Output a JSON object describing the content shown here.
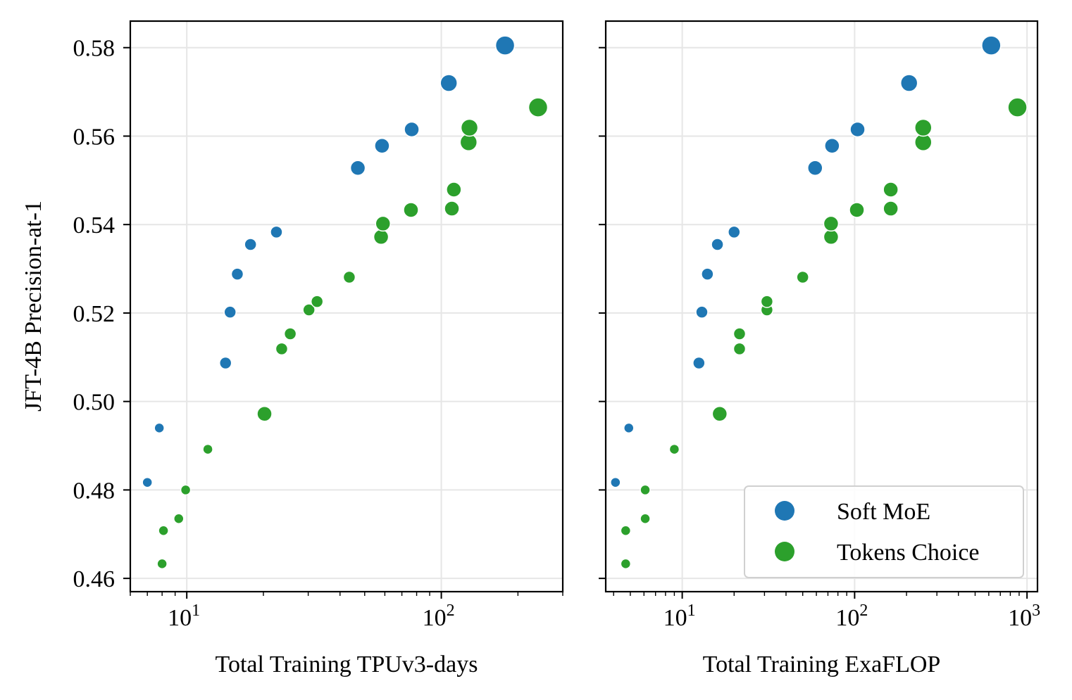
{
  "chart_data": [
    {
      "type": "scatter",
      "xlabel": "Total Training TPUv3-days",
      "ylabel": "JFT-4B Precision-at-1",
      "xscale": "log",
      "xlim": [
        6.0,
        300
      ],
      "ylim": [
        0.457,
        0.586
      ],
      "x_ticks": [
        10,
        100
      ],
      "x_tick_labels": [
        {
          "base": "10",
          "exp": "1"
        },
        {
          "base": "10",
          "exp": "2"
        }
      ],
      "y_ticks": [
        0.46,
        0.48,
        0.5,
        0.52,
        0.54,
        0.56,
        0.58
      ],
      "y_tick_labels": [
        "0.46",
        "0.48",
        "0.50",
        "0.52",
        "0.54",
        "0.56",
        "0.58"
      ],
      "grid": true,
      "series": [
        {
          "name": "Soft MoE",
          "color": "#1f77b4",
          "points": [
            {
              "x": 7.0,
              "y": 0.4817,
              "size": 1
            },
            {
              "x": 7.8,
              "y": 0.494,
              "size": 1
            },
            {
              "x": 14.2,
              "y": 0.5087,
              "size": 2
            },
            {
              "x": 14.8,
              "y": 0.5202,
              "size": 2
            },
            {
              "x": 15.8,
              "y": 0.5288,
              "size": 2
            },
            {
              "x": 17.8,
              "y": 0.5355,
              "size": 2
            },
            {
              "x": 22.5,
              "y": 0.5383,
              "size": 2
            },
            {
              "x": 47.0,
              "y": 0.5528,
              "size": 3
            },
            {
              "x": 58.5,
              "y": 0.5578,
              "size": 3
            },
            {
              "x": 76.5,
              "y": 0.5615,
              "size": 3
            },
            {
              "x": 107.0,
              "y": 0.572,
              "size": 4
            },
            {
              "x": 178.0,
              "y": 0.5805,
              "size": 5
            }
          ]
        },
        {
          "name": "Tokens Choice",
          "color": "#2ca02c",
          "points": [
            {
              "x": 8.0,
              "y": 0.4633,
              "size": 1
            },
            {
              "x": 8.1,
              "y": 0.4708,
              "size": 1
            },
            {
              "x": 9.3,
              "y": 0.4735,
              "size": 1
            },
            {
              "x": 9.9,
              "y": 0.48,
              "size": 1
            },
            {
              "x": 12.1,
              "y": 0.4892,
              "size": 1
            },
            {
              "x": 20.2,
              "y": 0.4972,
              "size": 3
            },
            {
              "x": 23.6,
              "y": 0.5119,
              "size": 2
            },
            {
              "x": 25.5,
              "y": 0.5153,
              "size": 2
            },
            {
              "x": 30.2,
              "y": 0.5207,
              "size": 2
            },
            {
              "x": 32.5,
              "y": 0.5226,
              "size": 2
            },
            {
              "x": 43.5,
              "y": 0.5281,
              "size": 2
            },
            {
              "x": 58.0,
              "y": 0.5372,
              "size": 3
            },
            {
              "x": 59.0,
              "y": 0.5402,
              "size": 3
            },
            {
              "x": 76.0,
              "y": 0.5433,
              "size": 3
            },
            {
              "x": 110.0,
              "y": 0.5436,
              "size": 3
            },
            {
              "x": 112.0,
              "y": 0.5479,
              "size": 3
            },
            {
              "x": 128.0,
              "y": 0.5586,
              "size": 4
            },
            {
              "x": 129.0,
              "y": 0.5619,
              "size": 4
            },
            {
              "x": 240.0,
              "y": 0.5665,
              "size": 5
            }
          ]
        }
      ]
    },
    {
      "type": "scatter",
      "xlabel": "Total Training ExaFLOP",
      "ylabel": "",
      "xscale": "log",
      "xlim": [
        3.6,
        1150
      ],
      "ylim": [
        0.457,
        0.586
      ],
      "x_ticks": [
        10,
        100,
        1000
      ],
      "x_tick_labels": [
        {
          "base": "10",
          "exp": "1"
        },
        {
          "base": "10",
          "exp": "2"
        },
        {
          "base": "10",
          "exp": "3"
        }
      ],
      "y_ticks": [
        0.46,
        0.48,
        0.5,
        0.52,
        0.54,
        0.56,
        0.58
      ],
      "grid": true,
      "legend": {
        "position": "lower-right",
        "entries": [
          {
            "label": "Soft MoE",
            "color": "#1f77b4"
          },
          {
            "label": "Tokens Choice",
            "color": "#2ca02c"
          }
        ]
      },
      "series": [
        {
          "name": "Soft MoE",
          "color": "#1f77b4",
          "points": [
            {
              "x": 4.1,
              "y": 0.4817,
              "size": 1
            },
            {
              "x": 4.9,
              "y": 0.494,
              "size": 1
            },
            {
              "x": 12.5,
              "y": 0.5087,
              "size": 2
            },
            {
              "x": 13.0,
              "y": 0.5202,
              "size": 2
            },
            {
              "x": 14.0,
              "y": 0.5288,
              "size": 2
            },
            {
              "x": 16.0,
              "y": 0.5355,
              "size": 2
            },
            {
              "x": 20.0,
              "y": 0.5383,
              "size": 2
            },
            {
              "x": 59.0,
              "y": 0.5528,
              "size": 3
            },
            {
              "x": 74.0,
              "y": 0.5578,
              "size": 3
            },
            {
              "x": 104.0,
              "y": 0.5615,
              "size": 3
            },
            {
              "x": 207.0,
              "y": 0.572,
              "size": 4
            },
            {
              "x": 620.0,
              "y": 0.5805,
              "size": 5
            }
          ]
        },
        {
          "name": "Tokens Choice",
          "color": "#2ca02c",
          "points": [
            {
              "x": 4.7,
              "y": 0.4633,
              "size": 1
            },
            {
              "x": 4.7,
              "y": 0.4708,
              "size": 1
            },
            {
              "x": 6.1,
              "y": 0.4735,
              "size": 1
            },
            {
              "x": 6.1,
              "y": 0.48,
              "size": 1
            },
            {
              "x": 9.0,
              "y": 0.4892,
              "size": 1
            },
            {
              "x": 16.5,
              "y": 0.4972,
              "size": 3
            },
            {
              "x": 21.5,
              "y": 0.5119,
              "size": 2
            },
            {
              "x": 21.5,
              "y": 0.5153,
              "size": 2
            },
            {
              "x": 31.0,
              "y": 0.5207,
              "size": 2
            },
            {
              "x": 31.0,
              "y": 0.5226,
              "size": 2
            },
            {
              "x": 50.0,
              "y": 0.5281,
              "size": 2
            },
            {
              "x": 73.0,
              "y": 0.5372,
              "size": 3
            },
            {
              "x": 73.0,
              "y": 0.5402,
              "size": 3
            },
            {
              "x": 103.0,
              "y": 0.5433,
              "size": 3
            },
            {
              "x": 162.0,
              "y": 0.5436,
              "size": 3
            },
            {
              "x": 162.0,
              "y": 0.5479,
              "size": 3
            },
            {
              "x": 250.0,
              "y": 0.5586,
              "size": 4
            },
            {
              "x": 250.0,
              "y": 0.5619,
              "size": 4
            },
            {
              "x": 880.0,
              "y": 0.5665,
              "size": 5
            }
          ]
        }
      ]
    }
  ]
}
